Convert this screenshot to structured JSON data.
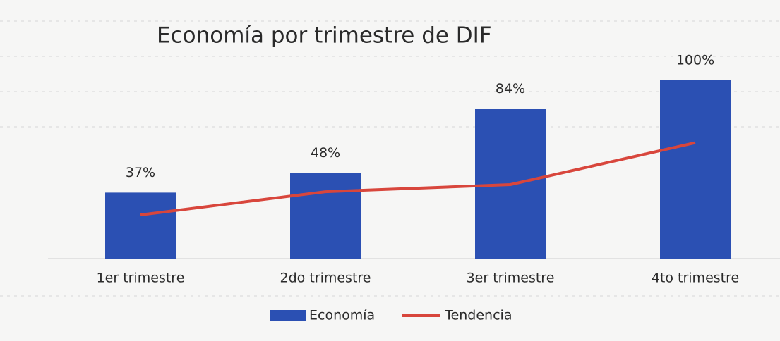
{
  "chart_data": {
    "type": "bar",
    "title": "Economía por trimestre de DIF",
    "categories": [
      "1er trimestre",
      "2do trimestre",
      "3er trimestre",
      "4to trimestre"
    ],
    "series": [
      {
        "name": "Economía",
        "type": "bar",
        "color": "#2b50b3",
        "values": [
          37,
          48,
          84,
          100
        ],
        "value_labels": [
          "37%",
          "48%",
          "84%",
          "100%"
        ]
      },
      {
        "name": "Tendencia",
        "type": "line",
        "color": "#d8463c",
        "values": [
          24.5,
          37.5,
          41.5,
          65
        ]
      }
    ],
    "ylim": [
      0,
      100
    ],
    "legend": "bottom"
  }
}
